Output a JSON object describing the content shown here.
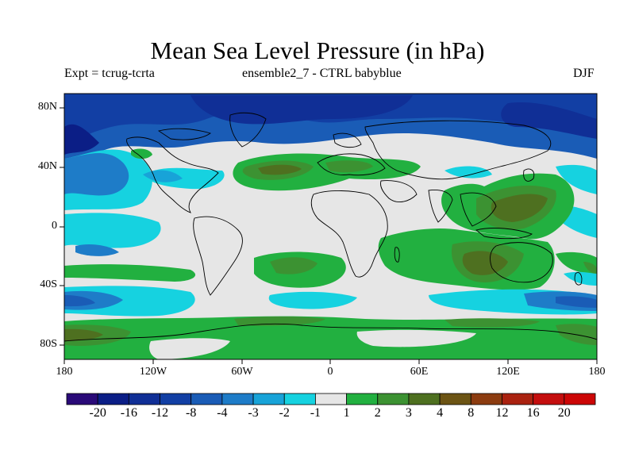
{
  "title": "Mean Sea Level Pressure (in hPa)",
  "subtitle_left": "Expt = tcrug-tcrta",
  "subtitle_center": "ensemble2_7 - CTRL babyblue",
  "subtitle_right": "DJF",
  "lat_labels": [
    "80N",
    "40N",
    "0",
    "40S",
    "80S"
  ],
  "lon_labels": [
    "180",
    "120W",
    "60W",
    "0",
    "60E",
    "120E",
    "180"
  ],
  "colorbar": {
    "labels": [
      "-20",
      "-16",
      "-12",
      "-8",
      "-4",
      "-3",
      "-2",
      "-1",
      "1",
      "2",
      "3",
      "4",
      "8",
      "12",
      "16",
      "20"
    ],
    "colors": [
      "#2a0a78",
      "#0b1e86",
      "#102f96",
      "#123fa4",
      "#1a5cb6",
      "#1e7cc8",
      "#18a3d8",
      "#16d2e0",
      "#e6e6e6",
      "#22b040",
      "#3c9232",
      "#4e7020",
      "#6c5414",
      "#8c3c10",
      "#aa2210",
      "#c40e0e",
      "#cc0606"
    ]
  },
  "colors": {
    "background_field": "#e6e6e6",
    "frame": "#000000"
  }
}
